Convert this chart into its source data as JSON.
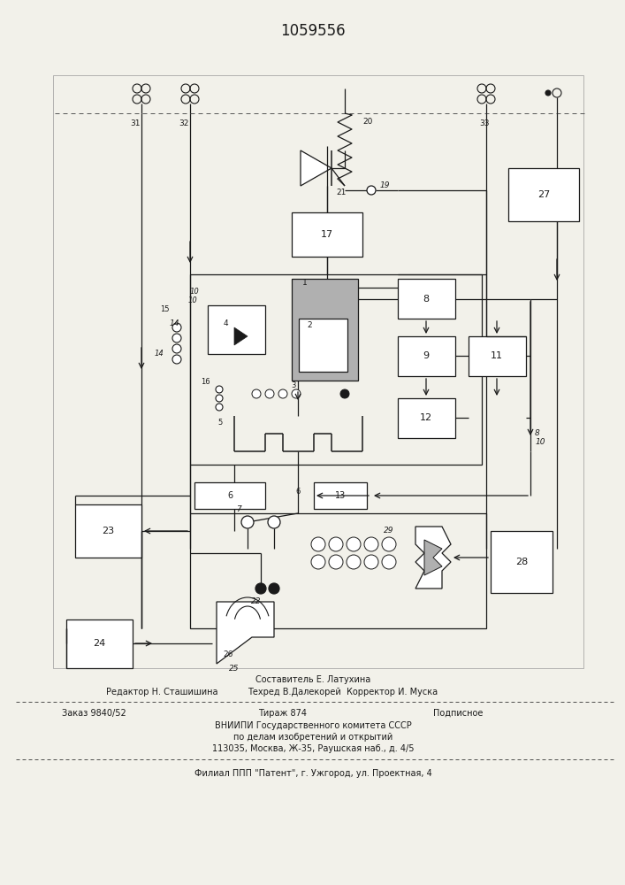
{
  "title": "1059556",
  "bg_color": "#f2f1ea",
  "footer": {
    "sestavitel": "Составитель Е. Латухина",
    "editor": "Редактор Н. Сташишина",
    "tehred": "Техред В.Далекорей  Корректор И. Муска",
    "zakaz": "Заказ 9840/52",
    "tirazh": "Тираж 874",
    "podp": "Подписное",
    "vnipi": "ВНИИПИ Государственного комитета СССР",
    "dela": "по делам изобретений и открытий",
    "addr": "113035, Москва, Ж-35, Раушская наб., д. 4/5",
    "filial": "Филиал ППП \"Патент\", г. Ужгород, ул. Проектная, 4"
  }
}
